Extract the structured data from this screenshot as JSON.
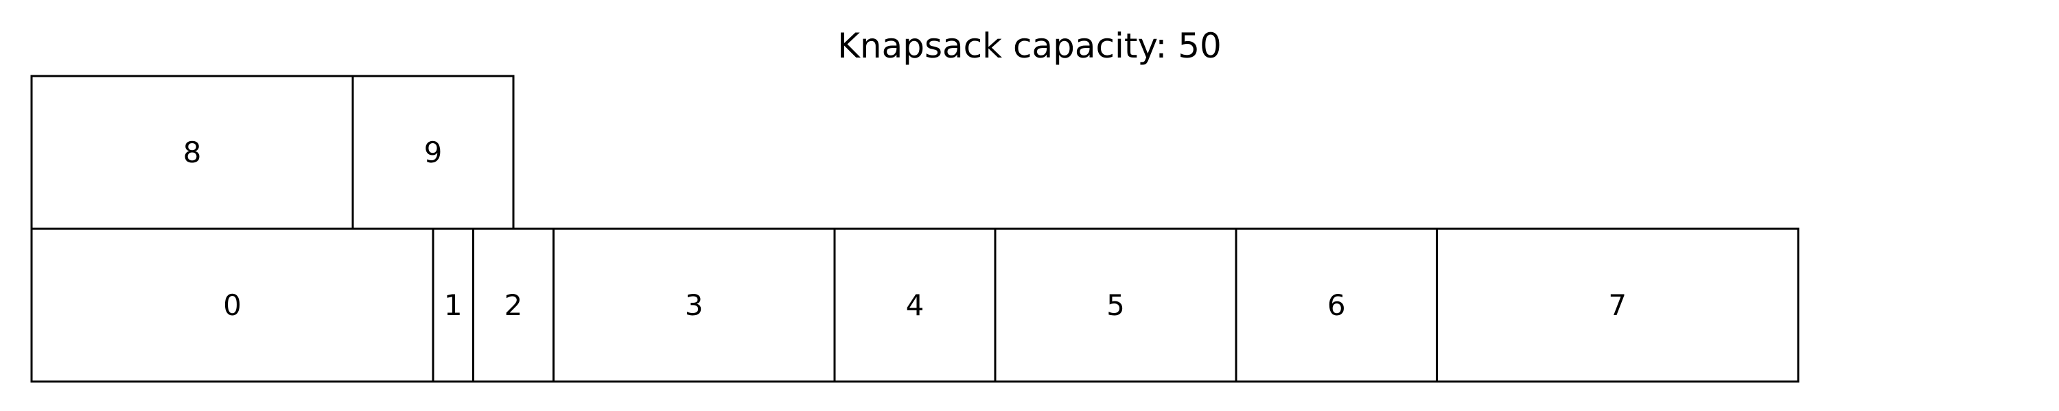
{
  "title": "Knapsack capacity: 50",
  "colors": {
    "box_fill": "#ffffff",
    "box_stroke": "#000000",
    "label": "#000000",
    "background": "#ffffff"
  },
  "rows": [
    {
      "name": "top",
      "items": [
        {
          "label": "8",
          "weight": 8
        },
        {
          "label": "9",
          "weight": 4
        }
      ]
    },
    {
      "name": "bottom",
      "items": [
        {
          "label": "0",
          "weight": 10
        },
        {
          "label": "1",
          "weight": 1
        },
        {
          "label": "2",
          "weight": 2
        },
        {
          "label": "3",
          "weight": 7
        },
        {
          "label": "4",
          "weight": 4
        },
        {
          "label": "5",
          "weight": 6
        },
        {
          "label": "6",
          "weight": 5
        },
        {
          "label": "7",
          "weight": 9
        }
      ]
    }
  ]
}
